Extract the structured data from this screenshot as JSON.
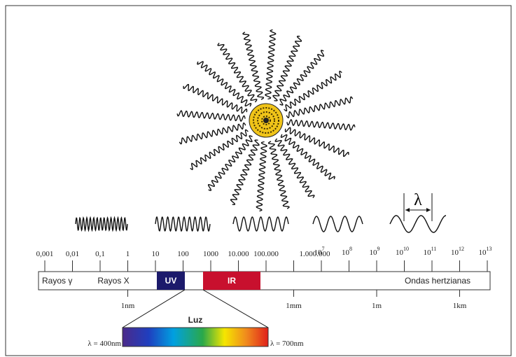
{
  "scale_labels": [
    "0,001",
    "0,01",
    "0,1",
    "1",
    "10",
    "100",
    "1000",
    "10.000",
    "100.000",
    "1.000.000"
  ],
  "power_labels": [
    {
      "base": "10",
      "exp": "7"
    },
    {
      "base": "10",
      "exp": "8"
    },
    {
      "base": "10",
      "exp": "9"
    },
    {
      "base": "10",
      "exp": "10"
    },
    {
      "base": "10",
      "exp": "11"
    },
    {
      "base": "10",
      "exp": "12"
    },
    {
      "base": "10",
      "exp": "13"
    }
  ],
  "bands": {
    "gamma": "Rayos γ",
    "xray": "Rayos X",
    "uv": "UV",
    "ir": "IR",
    "radio": "Ondas hertzianas"
  },
  "length_labels": [
    "1nm",
    "1mm",
    "1m",
    "1km"
  ],
  "light": {
    "title": "Luz",
    "min": "λ = 400nm",
    "max": "λ = 700nm"
  },
  "wavelength_symbol": "λ"
}
